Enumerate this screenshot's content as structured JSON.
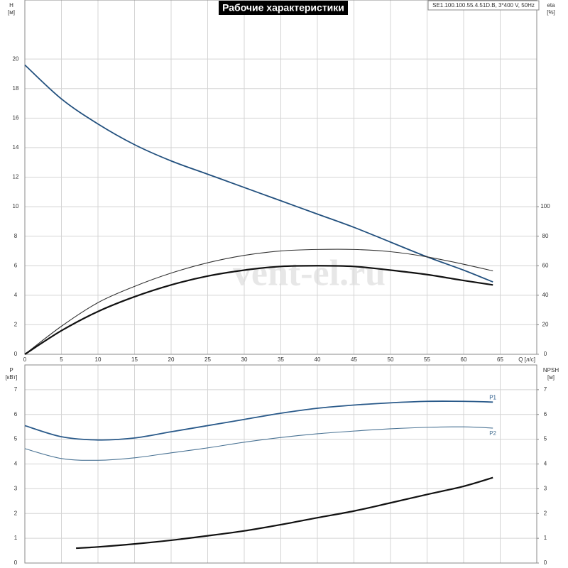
{
  "chart_data": [
    {
      "type": "line",
      "title": "Рабочие характеристики",
      "subtitle": "SE1.100.100.55.4.51D.B, 3*400 V, 50Hz",
      "watermark": "vent-el.ru",
      "ylabel": "H",
      "yunit": "[м]",
      "y2label": "eta",
      "y2unit": "[%]",
      "xlabel": "Q [л/с]",
      "xlim": [
        0,
        70
      ],
      "xticks": [
        0,
        5,
        10,
        15,
        20,
        25,
        30,
        35,
        40,
        45,
        50,
        55,
        60,
        65
      ],
      "ylim": [
        0,
        24
      ],
      "yticks": [
        0,
        2,
        4,
        6,
        8,
        10,
        12,
        14,
        16,
        18,
        20
      ],
      "y2lim": [
        0,
        240
      ],
      "y2ticks": [
        0,
        20,
        40,
        60,
        80,
        100
      ],
      "grid": true,
      "series": [
        {
          "color": "#22507e",
          "width": 1.8,
          "x": [
            0,
            5,
            10,
            15,
            20,
            25,
            30,
            35,
            40,
            45,
            50,
            55,
            60,
            64
          ],
          "values": [
            19.6,
            17.3,
            15.6,
            14.2,
            13.1,
            12.2,
            11.3,
            10.4,
            9.5,
            8.6,
            7.6,
            6.6,
            5.7,
            4.9
          ]
        },
        {
          "axis": "y2",
          "color": "#333333",
          "width": 1.1,
          "x": [
            0,
            5,
            10,
            15,
            20,
            25,
            30,
            35,
            40,
            45,
            50,
            55,
            60,
            64
          ],
          "values": [
            0,
            19,
            35,
            46,
            55,
            62,
            67,
            70,
            71,
            71,
            69.5,
            66,
            61,
            56.5
          ]
        },
        {
          "axis": "y2",
          "color": "#111111",
          "width": 2.2,
          "x": [
            0,
            5,
            10,
            15,
            20,
            25,
            30,
            35,
            40,
            45,
            50,
            55,
            60,
            64
          ],
          "values": [
            0,
            16,
            29,
            39,
            47,
            53,
            57,
            59.5,
            60,
            59.5,
            57,
            54,
            50,
            47
          ]
        }
      ]
    },
    {
      "type": "line",
      "ylabel": "P",
      "yunit": "[кВт]",
      "y2label": "NPSH",
      "y2unit": "[м]",
      "xlim": [
        0,
        70
      ],
      "xticks": [
        0,
        5,
        10,
        15,
        20,
        25,
        30,
        35,
        40,
        45,
        50,
        55,
        60,
        65
      ],
      "ylim": [
        0,
        8
      ],
      "yticks": [
        0,
        1,
        2,
        3,
        4,
        5,
        6,
        7
      ],
      "y2lim": [
        0,
        8
      ],
      "y2ticks": [
        0,
        1,
        2,
        3,
        4,
        5,
        6,
        7
      ],
      "grid": true,
      "series": [
        {
          "name": "P1",
          "color": "#2a5a8a",
          "width": 1.8,
          "x": [
            0,
            5,
            10,
            15,
            20,
            25,
            30,
            35,
            40,
            45,
            50,
            55,
            60,
            64
          ],
          "values": [
            5.55,
            5.1,
            4.97,
            5.05,
            5.3,
            5.55,
            5.8,
            6.05,
            6.25,
            6.38,
            6.47,
            6.53,
            6.53,
            6.5
          ]
        },
        {
          "name": "P2",
          "color": "#4a7394",
          "width": 1.1,
          "x": [
            0,
            5,
            10,
            15,
            20,
            25,
            30,
            35,
            40,
            45,
            50,
            55,
            60,
            64
          ],
          "values": [
            4.62,
            4.22,
            4.15,
            4.25,
            4.45,
            4.65,
            4.88,
            5.07,
            5.22,
            5.33,
            5.42,
            5.48,
            5.5,
            5.45
          ]
        },
        {
          "axis": "y2",
          "color": "#111111",
          "width": 2.2,
          "x": [
            7,
            10,
            15,
            20,
            25,
            30,
            35,
            40,
            45,
            50,
            55,
            60,
            64
          ],
          "values": [
            0.6,
            0.65,
            0.77,
            0.92,
            1.1,
            1.3,
            1.55,
            1.83,
            2.1,
            2.43,
            2.77,
            3.1,
            3.45
          ]
        }
      ]
    }
  ]
}
